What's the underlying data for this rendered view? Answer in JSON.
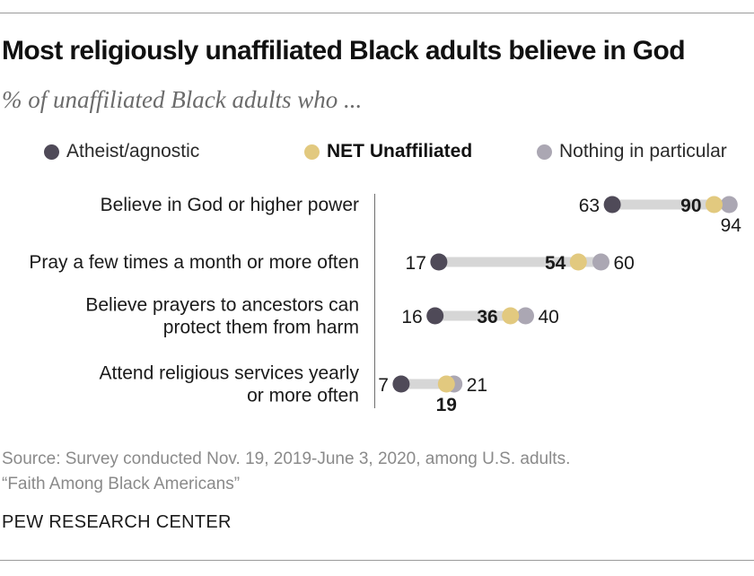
{
  "title": "Most religiously unaffiliated Black adults believe in God",
  "subtitle": "% of unaffiliated Black adults who ...",
  "legend": [
    {
      "label": "Atheist/agnostic",
      "color": "#4f4a58",
      "bold": false
    },
    {
      "label": "NET Unaffiliated",
      "color": "#e2c97f",
      "bold": true
    },
    {
      "label": "Nothing in particular",
      "color": "#aba7b3",
      "bold": false
    }
  ],
  "chart_data": {
    "type": "dot",
    "series_names": [
      "Atheist/agnostic",
      "NET Unaffiliated",
      "Nothing in particular"
    ],
    "categories": [
      {
        "label": [
          "Believe in God or higher power"
        ],
        "atheist": 63,
        "net": 90,
        "nothing": 94
      },
      {
        "label": [
          "Pray a few times a month or more often"
        ],
        "atheist": 17,
        "net": 54,
        "nothing": 60
      },
      {
        "label": [
          "Believe prayers to ancestors can",
          "protect them from harm"
        ],
        "atheist": 16,
        "net": 36,
        "nothing": 40
      },
      {
        "label": [
          "Attend religious services yearly",
          "or more often"
        ],
        "atheist": 7,
        "net": 19,
        "nothing": 21
      }
    ],
    "xlim": [
      0,
      100
    ],
    "colors": {
      "atheist": "#4f4a58",
      "net": "#e2c97f",
      "nothing": "#aba7b3",
      "bar": "#d6d6d6"
    }
  },
  "source": [
    "Source: Survey conducted Nov. 19, 2019-June 3, 2020, among U.S. adults.",
    "“Faith Among Black Americans”"
  ],
  "branding": "PEW RESEARCH CENTER"
}
